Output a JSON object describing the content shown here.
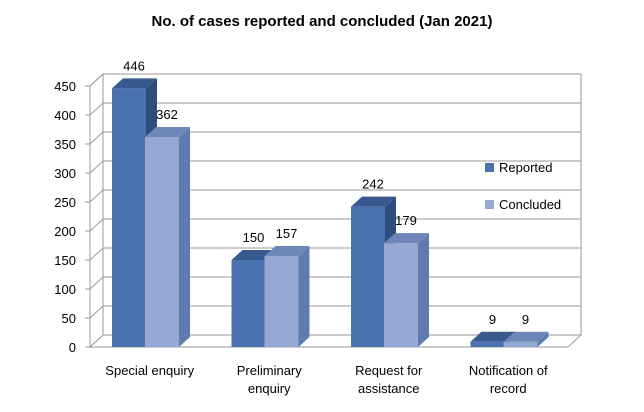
{
  "chart_data": {
    "type": "bar",
    "title": "No. of cases reported and concluded (Jan 2021)",
    "categories": [
      [
        "Special enquiry"
      ],
      [
        "Preliminary",
        "enquiry"
      ],
      [
        "Request for",
        "assistance"
      ],
      [
        "Notification of",
        "record"
      ]
    ],
    "series": [
      {
        "name": "Reported",
        "values": [
          446,
          150,
          242,
          9
        ],
        "color": "#4A72B0",
        "top": "#37598E",
        "side": "#2F4D7C"
      },
      {
        "name": "Concluded",
        "values": [
          362,
          157,
          179,
          9
        ],
        "color": "#95A9D4",
        "top": "#6E86B8",
        "side": "#607BAF"
      }
    ],
    "yticks": [
      "0",
      "50",
      "100",
      "150",
      "200",
      "250",
      "300",
      "350",
      "400",
      "450"
    ],
    "ylim": [
      0,
      450
    ],
    "legend_position": "right",
    "grid": true
  }
}
